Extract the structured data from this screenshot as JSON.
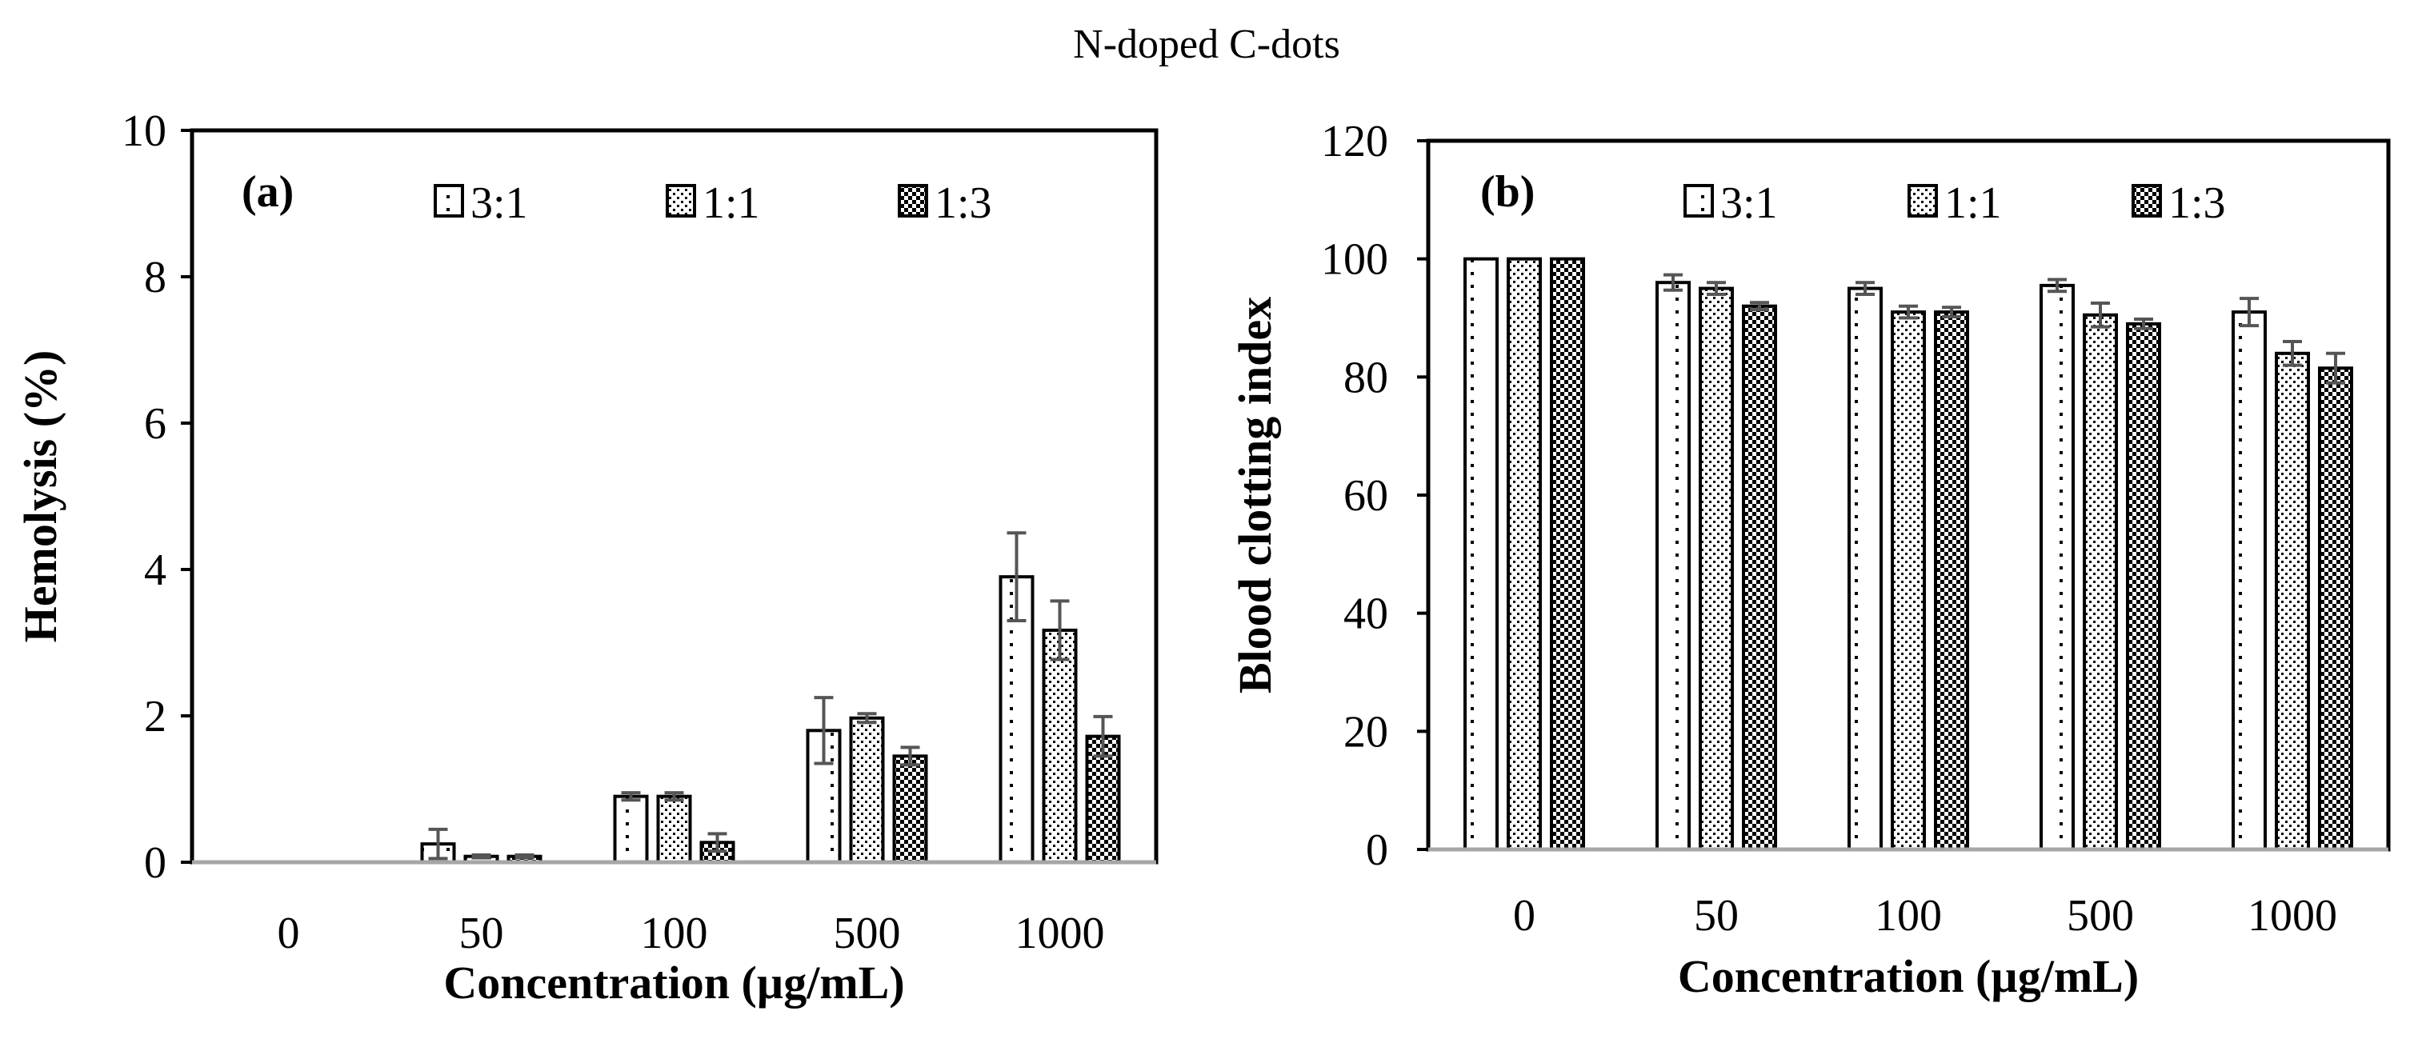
{
  "figure": {
    "title": "N-doped C-dots"
  },
  "chart_data": [
    {
      "type": "bar",
      "panel_label": "(a)",
      "categories": [
        "0",
        "50",
        "100",
        "500",
        "1000"
      ],
      "xlabel": "Concentration (µg/mL)",
      "ylabel": "Hemolysis (%)",
      "ylim": [
        0,
        10
      ],
      "yticks": [
        "0",
        "2",
        "4",
        "6",
        "8",
        "10"
      ],
      "grid": false,
      "legend_placement": "top",
      "series": [
        {
          "name": "3:1",
          "pattern": "sparse-dots",
          "values": [
            0,
            0.25,
            0.9,
            1.8,
            3.9
          ],
          "errors": [
            0,
            0.2,
            0.05,
            0.45,
            0.6
          ]
        },
        {
          "name": "1:1",
          "pattern": "dense-dots",
          "values": [
            0,
            0.08,
            0.9,
            1.97,
            3.17
          ],
          "errors": [
            0,
            0.02,
            0.05,
            0.06,
            0.4
          ]
        },
        {
          "name": "1:3",
          "pattern": "checker",
          "values": [
            0,
            0.08,
            0.27,
            1.45,
            1.72
          ],
          "errors": [
            0,
            0.02,
            0.12,
            0.12,
            0.27
          ]
        }
      ]
    },
    {
      "type": "bar",
      "panel_label": "(b)",
      "categories": [
        "0",
        "50",
        "100",
        "500",
        "1000"
      ],
      "xlabel": "Concentration (µg/mL)",
      "ylabel": "Blood clotting index",
      "ylim": [
        0,
        120
      ],
      "yticks": [
        "0",
        "20",
        "40",
        "60",
        "80",
        "100",
        "120"
      ],
      "grid": false,
      "legend_placement": "top",
      "series": [
        {
          "name": "3:1",
          "pattern": "sparse-dots",
          "values": [
            100,
            96,
            95,
            95.5,
            91
          ],
          "errors": [
            0,
            1.3,
            1.0,
            1.0,
            2.3
          ]
        },
        {
          "name": "1:1",
          "pattern": "dense-dots",
          "values": [
            100,
            95,
            91,
            90.5,
            84
          ],
          "errors": [
            0,
            1.0,
            1.0,
            2.0,
            2.0
          ]
        },
        {
          "name": "1:3",
          "pattern": "checker",
          "values": [
            100,
            92,
            91,
            89,
            81.5
          ],
          "errors": [
            0,
            0.6,
            0.8,
            0.8,
            2.5
          ]
        }
      ]
    }
  ]
}
